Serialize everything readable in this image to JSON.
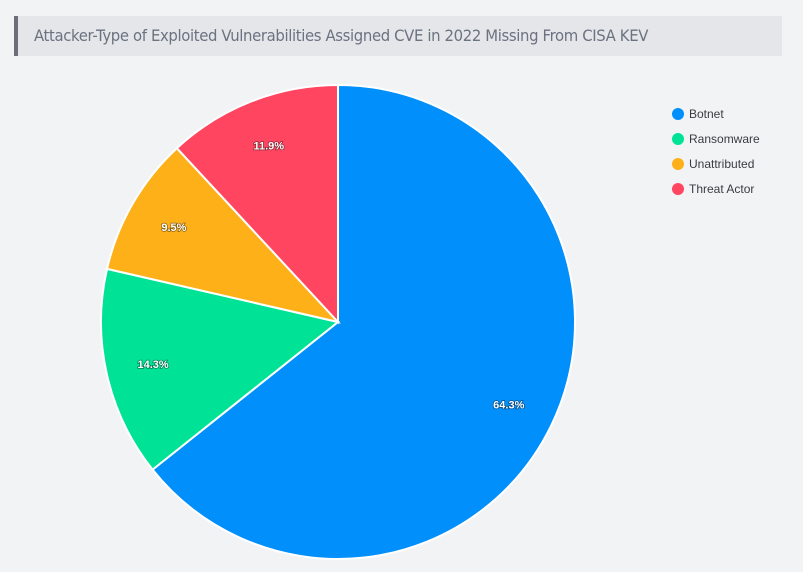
{
  "chart_data": {
    "type": "pie",
    "title": "Attacker-Type of Exploited Vulnerabilities Assigned CVE in 2022 Missing From CISA KEV",
    "categories": [
      "Botnet",
      "Ransomware",
      "Unattributed",
      "Threat Actor"
    ],
    "values": [
      64.3,
      14.3,
      9.5,
      11.9
    ],
    "labels": [
      "64.3%",
      "14.3%",
      "9.5%",
      "11.9%"
    ],
    "colors": [
      "#008ffb",
      "#00e396",
      "#feb019",
      "#ff4560"
    ],
    "legend_position": "top-right"
  }
}
